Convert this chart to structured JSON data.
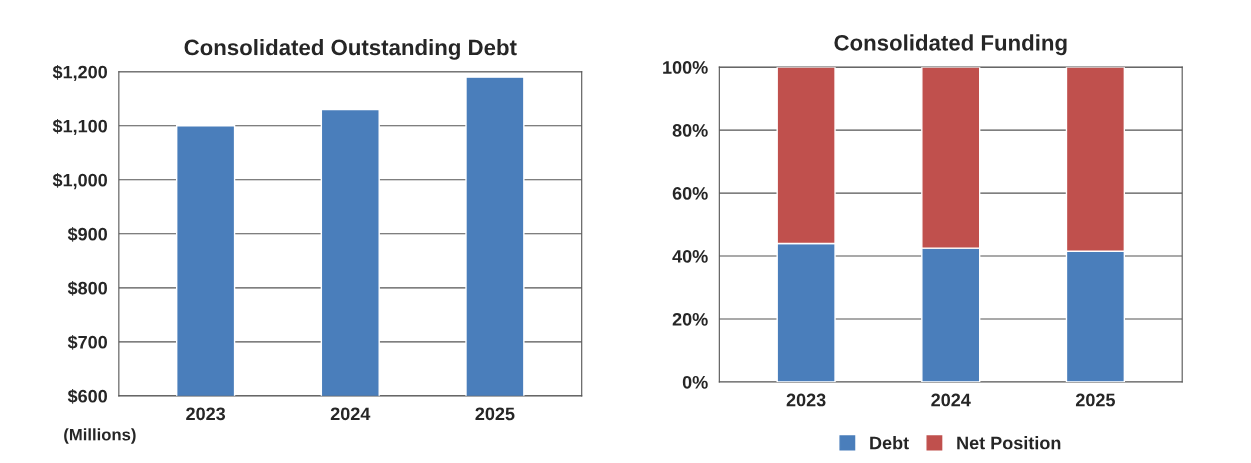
{
  "chart_data": [
    {
      "type": "bar",
      "title": "Consolidated Outstanding Debt",
      "categories": [
        "2023",
        "2024",
        "2025"
      ],
      "values": [
        1100,
        1130,
        1190
      ],
      "color": "#4a7ebb",
      "ylim": [
        600,
        1200
      ],
      "yticks": [
        {
          "value": 600,
          "label": "$600"
        },
        {
          "value": 700,
          "label": "$700"
        },
        {
          "value": 800,
          "label": "$800"
        },
        {
          "value": 900,
          "label": "$900"
        },
        {
          "value": 1000,
          "label": "$1,000"
        },
        {
          "value": 1100,
          "label": "$1,100"
        },
        {
          "value": 1200,
          "label": "$1,200"
        }
      ],
      "grid": "y",
      "annotations": [
        "(Millions)"
      ]
    },
    {
      "type": "bar",
      "title": "Consolidated Funding",
      "stacked": true,
      "categories": [
        "2023",
        "2024",
        "2025"
      ],
      "series": [
        {
          "name": "Debt",
          "color": "#4a7ebb",
          "values": [
            44,
            42.5,
            41.5
          ]
        },
        {
          "name": "Net Position",
          "color": "#c0504d",
          "values": [
            56,
            57.5,
            58.5
          ]
        }
      ],
      "ylim": [
        0,
        100
      ],
      "yticks": [
        {
          "value": 0,
          "label": "0%"
        },
        {
          "value": 20,
          "label": "20%"
        },
        {
          "value": 40,
          "label": "40%"
        },
        {
          "value": 60,
          "label": "60%"
        },
        {
          "value": 80,
          "label": "80%"
        },
        {
          "value": 100,
          "label": "100%"
        }
      ],
      "grid": "y",
      "legend": "bottom"
    }
  ]
}
